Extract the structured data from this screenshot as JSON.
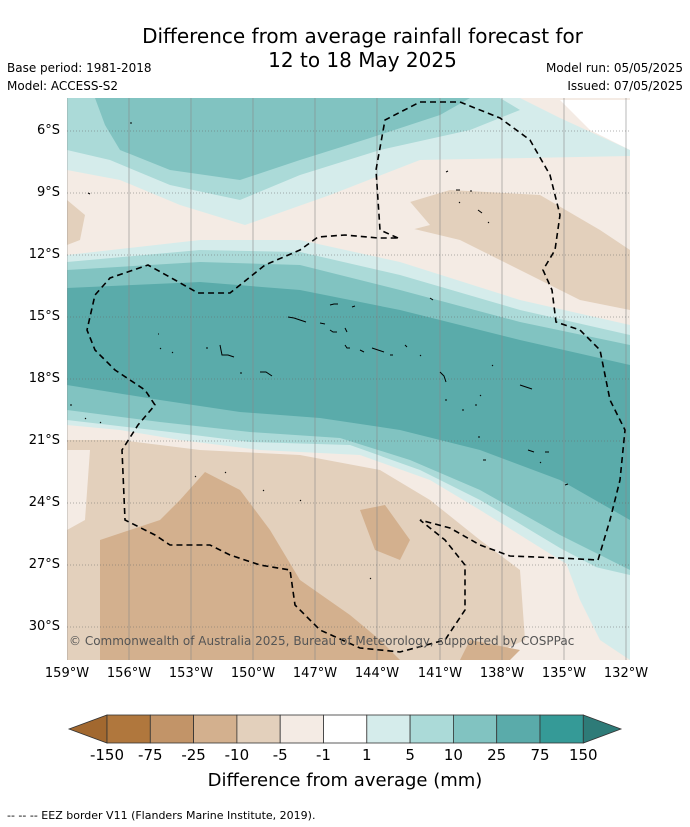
{
  "header": {
    "title_line1": "Difference from average rainfall forecast for",
    "title_line2": "12 to 18 May 2025",
    "base_period": "Base period: 1981-2018",
    "model": "Model: ACCESS-S2",
    "model_run": "Model run: 05/05/2025",
    "issued": "Issued: 07/05/2025"
  },
  "map": {
    "lat_ticks": [
      "6°S",
      "9°S",
      "12°S",
      "15°S",
      "18°S",
      "21°S",
      "24°S",
      "27°S",
      "30°S"
    ],
    "lon_ticks": [
      "159°W",
      "156°W",
      "153°W",
      "150°W",
      "147°W",
      "144°W",
      "141°W",
      "138°W",
      "135°W",
      "132°W"
    ],
    "copyright": "© Commonwealth of Australia 2025, Bureau of Meteorology, supported by COSPPac"
  },
  "colorbar": {
    "labels": [
      "-150",
      "-75",
      "-25",
      "-10",
      "-5",
      "-1",
      "1",
      "5",
      "10",
      "25",
      "75",
      "150"
    ],
    "colors": [
      "#b0773d",
      "#c29468",
      "#d3b08e",
      "#e3d0bc",
      "#f4ebe4",
      "#ffffff",
      "#d5eceb",
      "#abdad8",
      "#81c3c1",
      "#5aabaa",
      "#359a97",
      "#2e7b78"
    ],
    "title": "Difference from average (mm)"
  },
  "footer": {
    "eez_note": "--  --  -- EEZ border V11 (Flanders Marine Institute, 2019)."
  }
}
